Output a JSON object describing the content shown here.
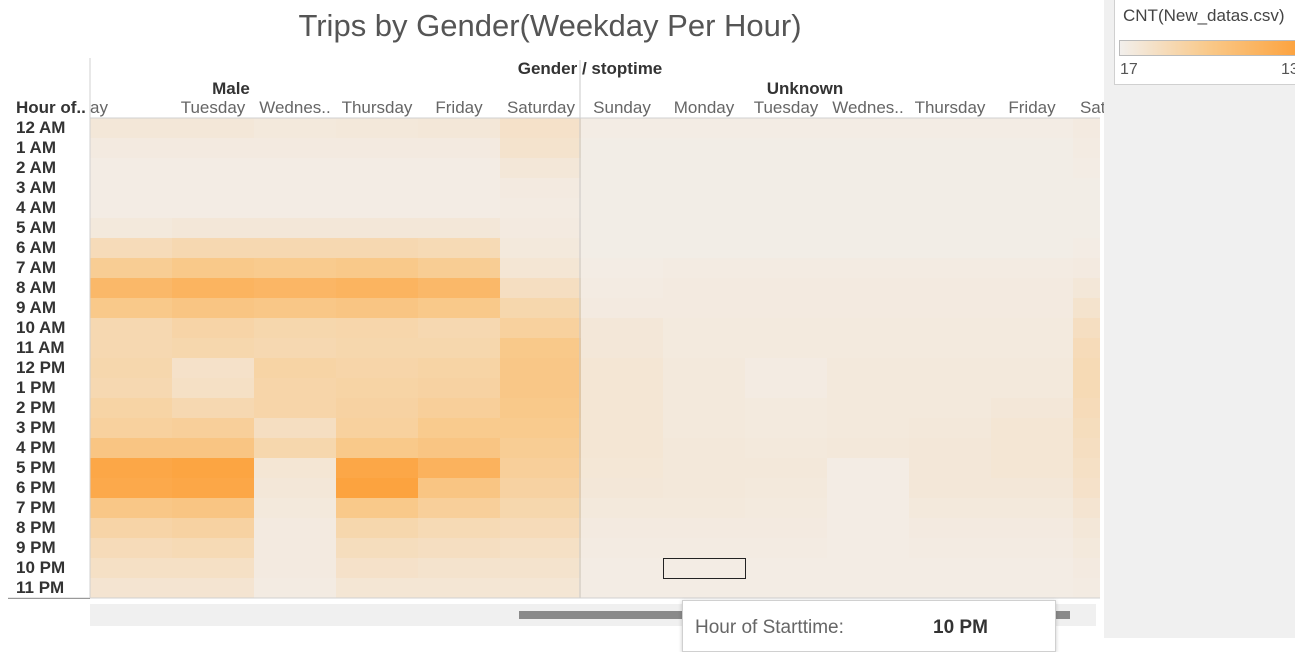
{
  "chart_data": {
    "type": "heatmap",
    "title": "Trips by Gender(Weekday Per Hour)",
    "column_header_label": "Gender / stoptime",
    "row_header_label": "Hour of..",
    "groups": [
      {
        "name": "Male",
        "columns": [
          "ay",
          "Tuesday",
          "Wednes..",
          "Thursday",
          "Friday",
          "Saturday"
        ]
      },
      {
        "name": "Unknown",
        "columns": [
          "Sunday",
          "Monday",
          "Tuesday",
          "Wednes..",
          "Thursday",
          "Friday",
          "Saturday"
        ]
      }
    ],
    "hours": [
      "12 AM",
      "1 AM",
      "2 AM",
      "3 AM",
      "4 AM",
      "5 AM",
      "6 AM",
      "7 AM",
      "8 AM",
      "9 AM",
      "10 AM",
      "11 AM",
      "12 PM",
      "1 PM",
      "2 PM",
      "3 PM",
      "4 PM",
      "5 PM",
      "6 PM",
      "7 PM",
      "8 PM",
      "9 PM",
      "10 PM",
      "11 PM"
    ],
    "intensity_scale": [
      0,
      1
    ],
    "values": [
      [
        0.1,
        0.1,
        0.08,
        0.09,
        0.1,
        0.18,
        0.04,
        0.04,
        0.04,
        0.04,
        0.04,
        0.04,
        0.06
      ],
      [
        0.06,
        0.06,
        0.06,
        0.06,
        0.06,
        0.16,
        0.03,
        0.03,
        0.03,
        0.03,
        0.03,
        0.03,
        0.05
      ],
      [
        0.04,
        0.04,
        0.04,
        0.04,
        0.04,
        0.1,
        0.03,
        0.03,
        0.03,
        0.03,
        0.03,
        0.03,
        0.04
      ],
      [
        0.04,
        0.04,
        0.04,
        0.04,
        0.04,
        0.06,
        0.03,
        0.03,
        0.03,
        0.03,
        0.03,
        0.03,
        0.03
      ],
      [
        0.04,
        0.04,
        0.04,
        0.04,
        0.04,
        0.05,
        0.03,
        0.03,
        0.03,
        0.03,
        0.03,
        0.03,
        0.03
      ],
      [
        0.08,
        0.1,
        0.1,
        0.1,
        0.1,
        0.06,
        0.03,
        0.03,
        0.03,
        0.03,
        0.03,
        0.03,
        0.03
      ],
      [
        0.26,
        0.3,
        0.3,
        0.3,
        0.28,
        0.08,
        0.03,
        0.03,
        0.03,
        0.03,
        0.03,
        0.03,
        0.04
      ],
      [
        0.45,
        0.5,
        0.48,
        0.5,
        0.45,
        0.12,
        0.04,
        0.05,
        0.05,
        0.05,
        0.05,
        0.05,
        0.06
      ],
      [
        0.72,
        0.78,
        0.75,
        0.78,
        0.72,
        0.22,
        0.05,
        0.06,
        0.06,
        0.06,
        0.06,
        0.06,
        0.1
      ],
      [
        0.5,
        0.55,
        0.52,
        0.55,
        0.5,
        0.32,
        0.06,
        0.06,
        0.06,
        0.06,
        0.06,
        0.06,
        0.16
      ],
      [
        0.3,
        0.35,
        0.32,
        0.33,
        0.3,
        0.4,
        0.1,
        0.07,
        0.07,
        0.07,
        0.07,
        0.07,
        0.22
      ],
      [
        0.3,
        0.32,
        0.3,
        0.32,
        0.32,
        0.5,
        0.1,
        0.07,
        0.07,
        0.07,
        0.07,
        0.07,
        0.26
      ],
      [
        0.32,
        0.18,
        0.36,
        0.34,
        0.36,
        0.52,
        0.12,
        0.08,
        0.05,
        0.08,
        0.08,
        0.08,
        0.28
      ],
      [
        0.3,
        0.2,
        0.34,
        0.36,
        0.38,
        0.52,
        0.12,
        0.08,
        0.05,
        0.08,
        0.08,
        0.08,
        0.28
      ],
      [
        0.36,
        0.3,
        0.34,
        0.38,
        0.42,
        0.5,
        0.12,
        0.08,
        0.07,
        0.08,
        0.08,
        0.1,
        0.26
      ],
      [
        0.4,
        0.42,
        0.22,
        0.4,
        0.48,
        0.48,
        0.12,
        0.08,
        0.07,
        0.08,
        0.09,
        0.12,
        0.24
      ],
      [
        0.55,
        0.55,
        0.32,
        0.5,
        0.55,
        0.45,
        0.12,
        0.09,
        0.08,
        0.09,
        0.1,
        0.12,
        0.22
      ],
      [
        0.95,
        0.98,
        0.12,
        0.95,
        0.8,
        0.42,
        0.11,
        0.09,
        0.09,
        0.04,
        0.1,
        0.12,
        0.2
      ],
      [
        0.92,
        0.95,
        0.1,
        1.0,
        0.55,
        0.38,
        0.1,
        0.09,
        0.08,
        0.04,
        0.1,
        0.1,
        0.18
      ],
      [
        0.52,
        0.55,
        0.08,
        0.5,
        0.42,
        0.32,
        0.08,
        0.08,
        0.07,
        0.04,
        0.08,
        0.08,
        0.14
      ],
      [
        0.35,
        0.38,
        0.06,
        0.32,
        0.28,
        0.26,
        0.06,
        0.06,
        0.06,
        0.04,
        0.06,
        0.06,
        0.1
      ],
      [
        0.26,
        0.28,
        0.06,
        0.24,
        0.22,
        0.2,
        0.05,
        0.05,
        0.05,
        0.04,
        0.05,
        0.05,
        0.08
      ],
      [
        0.2,
        0.2,
        0.06,
        0.18,
        0.16,
        0.16,
        0.04,
        0.04,
        0.04,
        0.04,
        0.04,
        0.04,
        0.06
      ],
      [
        0.14,
        0.14,
        0.05,
        0.12,
        0.12,
        0.12,
        0.04,
        0.04,
        0.04,
        0.04,
        0.04,
        0.04,
        0.05
      ]
    ],
    "highlighted_cell": {
      "hour": "10 PM",
      "group": "Unknown",
      "column": "Monday"
    }
  },
  "legend": {
    "title": "CNT(New_datas.csv)",
    "min_label": "17",
    "max_label": "13",
    "colors": [
      "#f2efec",
      "#f9c98a",
      "#fca33f"
    ]
  },
  "tooltip": {
    "label": "Hour of Starttime:",
    "value": "10 PM"
  }
}
